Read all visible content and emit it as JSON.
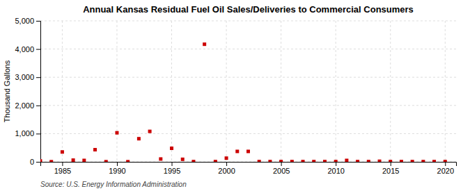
{
  "chart_data": {
    "type": "scatter",
    "title": "Annual Kansas Residual Fuel Oil Sales/Deliveries to Commercial Consumers",
    "ylabel": "Thousand Gallons",
    "source": "Source: U.S. Energy Information Administration",
    "x": [
      1983,
      1984,
      1985,
      1986,
      1987,
      1988,
      1989,
      1990,
      1991,
      1992,
      1993,
      1994,
      1995,
      1996,
      1997,
      1998,
      1999,
      2000,
      2001,
      2002,
      2003,
      2004,
      2005,
      2006,
      2007,
      2008,
      2009,
      2010,
      2011,
      2012,
      2013,
      2014,
      2015,
      2016,
      2017,
      2018,
      2019,
      2020
    ],
    "values": [
      30,
      5,
      350,
      60,
      50,
      430,
      5,
      1030,
      5,
      820,
      1080,
      100,
      480,
      90,
      10,
      4170,
      10,
      130,
      370,
      370,
      10,
      10,
      10,
      10,
      10,
      10,
      10,
      10,
      50,
      10,
      10,
      20,
      10,
      10,
      10,
      10,
      10,
      10
    ],
    "color": "#cc0000",
    "marker": "square",
    "xlim": [
      1983,
      2021
    ],
    "ylim": [
      0,
      5000
    ],
    "xticks": [
      1985,
      1990,
      1995,
      2000,
      2005,
      2010,
      2015,
      2020
    ],
    "yticks": [
      0,
      {
        "value": 1000,
        "label": "1,000"
      },
      {
        "value": 2000,
        "label": "2,000"
      },
      {
        "value": 3000,
        "label": "3,000"
      },
      {
        "value": 4000,
        "label": "4,000"
      },
      {
        "value": 5000,
        "label": "5,000"
      }
    ],
    "grid": true
  }
}
